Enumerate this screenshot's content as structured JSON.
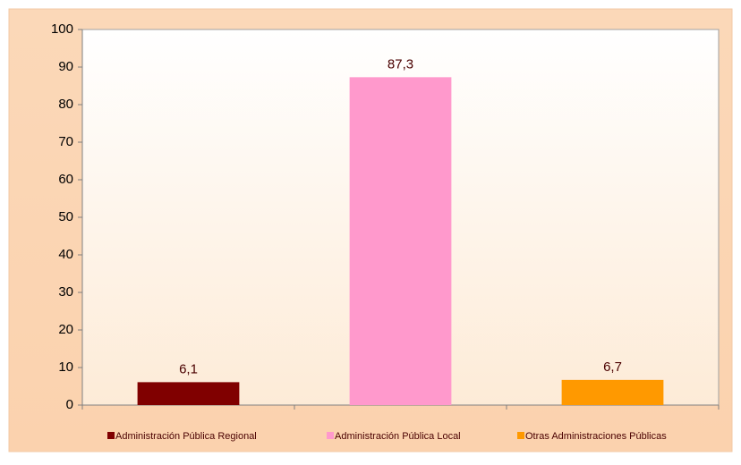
{
  "chart_data": {
    "type": "bar",
    "series": [
      {
        "name": "Administración Pública Regional",
        "color": "#800000",
        "values": [
          6.1
        ],
        "value_labels": [
          "6,1"
        ]
      },
      {
        "name": "Administración Pública Local",
        "color": "#ff99cc",
        "values": [
          87.3
        ],
        "value_labels": [
          "87,3"
        ]
      },
      {
        "name": "Otras Administraciones Públicas",
        "color": "#ff9900",
        "values": [
          6.7
        ],
        "value_labels": [
          "6,7"
        ]
      }
    ],
    "ylim": [
      0,
      100
    ],
    "yticks": [
      0,
      10,
      20,
      30,
      40,
      50,
      60,
      70,
      80,
      90,
      100
    ],
    "legend": "bottom"
  }
}
